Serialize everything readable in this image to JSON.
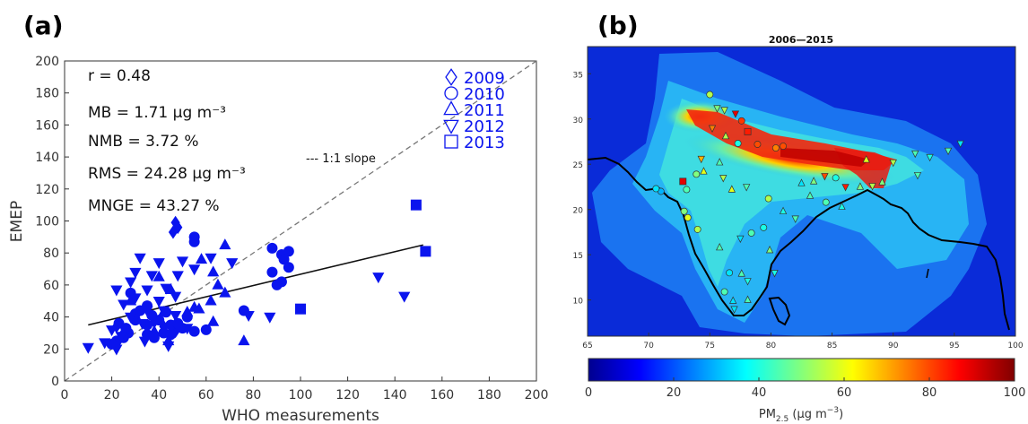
{
  "colors": {
    "marker": "#0a14ee",
    "fit_line": "#111111",
    "ref_line": "#777777",
    "coast": "#000000"
  },
  "chart_data": [
    {
      "panel_label": "(a)",
      "type": "scatter",
      "title": "",
      "xlabel": "WHO measurements",
      "ylabel": "EMEP",
      "xlim": [
        0,
        200
      ],
      "ylim": [
        0,
        200
      ],
      "xticks": [
        0,
        20,
        40,
        60,
        80,
        100,
        120,
        140,
        160,
        180,
        200
      ],
      "yticks": [
        0,
        20,
        40,
        60,
        80,
        100,
        120,
        140,
        160,
        180,
        200
      ],
      "grid": false,
      "legend_position": "top-right",
      "stats": [
        "r = 0.48",
        "MB = 1.71  μg m⁻³",
        "NMB = 3.72  %",
        "RMS = 24.28  μg m⁻³",
        "MNGE = 43.27  %"
      ],
      "ref_line_label": "--- 1:1 slope",
      "fit_line": {
        "x": [
          10,
          152
        ],
        "y": [
          35,
          85
        ]
      },
      "series": [
        {
          "name": "2009",
          "marker": "diamond",
          "points": [
            [
              47,
              99
            ],
            [
              48,
              96
            ],
            [
              46,
              93
            ],
            [
              22,
              34
            ],
            [
              25,
              30
            ],
            [
              38,
              37
            ],
            [
              42,
              34
            ],
            [
              47,
              31
            ]
          ]
        },
        {
          "name": "2010",
          "marker": "circle",
          "points": [
            [
              55,
              90
            ],
            [
              55,
              87
            ],
            [
              88,
              83
            ],
            [
              92,
              79
            ],
            [
              95,
              81
            ],
            [
              93,
              76
            ],
            [
              95,
              71
            ],
            [
              88,
              68
            ],
            [
              92,
              62
            ],
            [
              90,
              60
            ],
            [
              76,
              44
            ],
            [
              60,
              32
            ],
            [
              55,
              31
            ],
            [
              50,
              33
            ],
            [
              45,
              35
            ],
            [
              40,
              38
            ],
            [
              37,
              41
            ],
            [
              32,
              44
            ],
            [
              30,
              38
            ],
            [
              27,
              30
            ],
            [
              25,
              27
            ],
            [
              22,
              25
            ],
            [
              20,
              23
            ],
            [
              35,
              29
            ],
            [
              38,
              27
            ],
            [
              42,
              30
            ],
            [
              45,
              29
            ],
            [
              48,
              36
            ],
            [
              35,
              47
            ],
            [
              28,
              55
            ],
            [
              30,
              42
            ],
            [
              23,
              36
            ],
            [
              43,
              43
            ],
            [
              35,
              35
            ],
            [
              52,
              40
            ],
            [
              26,
              33
            ]
          ]
        },
        {
          "name": "2011",
          "marker": "triangle-up",
          "points": [
            [
              68,
              85
            ],
            [
              58,
              76
            ],
            [
              63,
              68
            ],
            [
              65,
              60
            ],
            [
              68,
              55
            ],
            [
              62,
              50
            ],
            [
              57,
              45
            ],
            [
              52,
              43
            ],
            [
              63,
              37
            ],
            [
              76,
              25
            ],
            [
              40,
              65
            ],
            [
              45,
              57
            ],
            [
              42,
              43
            ],
            [
              28,
              50
            ],
            [
              38,
              31
            ],
            [
              44,
              25
            ],
            [
              55,
              46
            ]
          ]
        },
        {
          "name": "2012",
          "marker": "triangle-down",
          "points": [
            [
              32,
              77
            ],
            [
              40,
              74
            ],
            [
              50,
              75
            ],
            [
              62,
              77
            ],
            [
              71,
              74
            ],
            [
              55,
              70
            ],
            [
              48,
              66
            ],
            [
              37,
              66
            ],
            [
              30,
              68
            ],
            [
              28,
              62
            ],
            [
              22,
              57
            ],
            [
              35,
              57
            ],
            [
              43,
              58
            ],
            [
              47,
              53
            ],
            [
              30,
              52
            ],
            [
              40,
              50
            ],
            [
              25,
              48
            ],
            [
              35,
              44
            ],
            [
              42,
              44
            ],
            [
              47,
              41
            ],
            [
              28,
              40
            ],
            [
              33,
              36
            ],
            [
              20,
              32
            ],
            [
              24,
              28
            ],
            [
              34,
              25
            ],
            [
              44,
              22
            ],
            [
              17,
              24
            ],
            [
              10,
              21
            ],
            [
              22,
              20
            ],
            [
              52,
              33
            ],
            [
              87,
              40
            ],
            [
              78,
              41
            ],
            [
              133,
              65
            ],
            [
              144,
              53
            ]
          ]
        },
        {
          "name": "2013",
          "marker": "square",
          "points": [
            [
              149,
              110
            ],
            [
              153,
              81
            ],
            [
              100,
              45
            ]
          ]
        }
      ]
    },
    {
      "panel_label": "(b)",
      "type": "heatmap",
      "title": "2006—2015",
      "xlim": [
        65,
        100
      ],
      "ylim": [
        6,
        38
      ],
      "xticks": [
        65,
        70,
        75,
        80,
        85,
        90,
        95,
        100
      ],
      "yticks": [
        10,
        15,
        20,
        25,
        30,
        35
      ],
      "colorbar": {
        "min": 0,
        "max": 100,
        "ticks": [
          0,
          20,
          40,
          60,
          80,
          100
        ],
        "label_main": "PM",
        "label_sub": "2.5",
        "label_unit": " (μg m",
        "label_exp": "−3",
        "label_close": ")"
      }
    }
  ]
}
